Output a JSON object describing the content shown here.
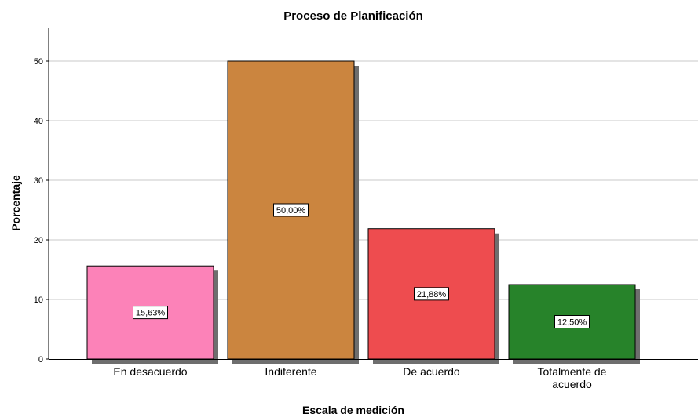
{
  "chart_data": {
    "type": "bar",
    "title": "Proceso de Planificación",
    "xlabel": "Escala de medición",
    "ylabel": "Porcentaje",
    "ylim": [
      0,
      55
    ],
    "yticks": [
      0,
      10,
      20,
      30,
      40,
      50
    ],
    "grid": true,
    "legend": "none",
    "categories": [
      [
        "En desacuerdo"
      ],
      [
        "Indiferente"
      ],
      [
        "De acuerdo"
      ],
      [
        "Totalmente de",
        "acuerdo"
      ]
    ],
    "values": [
      15.63,
      50.0,
      21.88,
      12.5
    ],
    "data_labels": [
      "15,63%",
      "50,00%",
      "21,88%",
      "12,50%"
    ],
    "colors": [
      "#fc82b8",
      "#cb853f",
      "#ee4c4f",
      "#27832a"
    ]
  }
}
